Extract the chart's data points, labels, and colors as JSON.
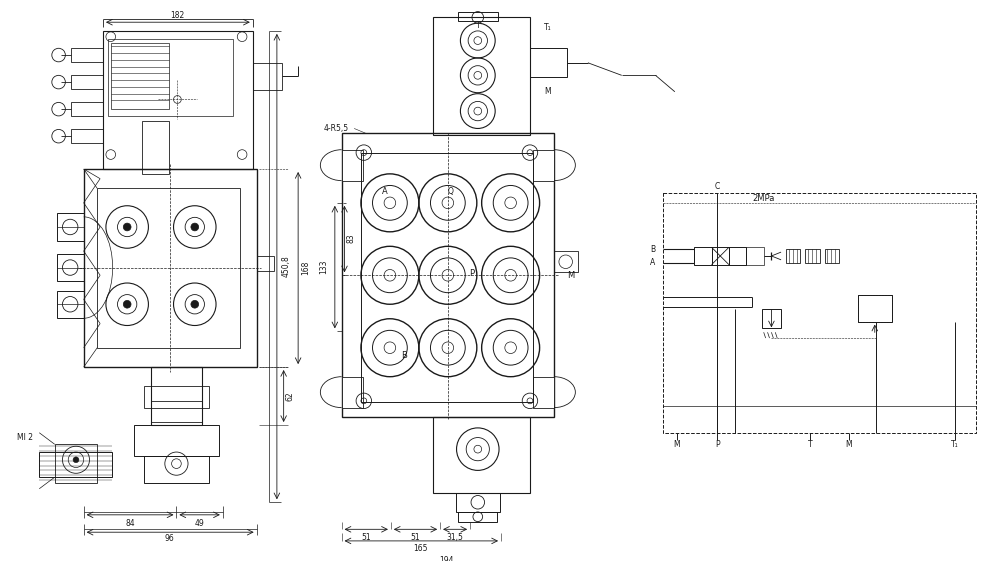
{
  "bg_color": "#ffffff",
  "lc": "#1a1a1a",
  "fig_width": 10.0,
  "fig_height": 5.61,
  "dims": {
    "d182": "182",
    "d4508": "450,8",
    "d168": "168",
    "d62": "62",
    "d84": "84",
    "d49": "49",
    "d96": "96",
    "dml2": "Ml 2",
    "d133": "133",
    "d83": "83",
    "d4R55": "4-R5,5",
    "dT": "T",
    "dA": "A",
    "dP": "P",
    "dB": "B",
    "dM": "M",
    "dQ": "Q",
    "dT1": "T₁",
    "dMM": "M",
    "d51a": "51",
    "d51b": "51",
    "d315": "31,5",
    "d165": "165",
    "d194": "194",
    "sC": "C",
    "sB": "B",
    "sA": "A",
    "sM": "M",
    "sP": "P",
    "sT": "T",
    "sM2": "M",
    "sT1": "T₁",
    "s2MPa": "2MPa"
  }
}
